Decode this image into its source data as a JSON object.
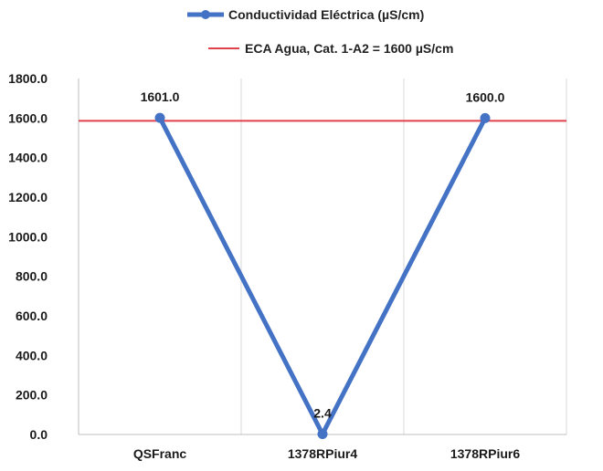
{
  "chart_data": {
    "type": "line",
    "categories": [
      "QSFranc",
      "1378RPiur4",
      "1378RPiur6"
    ],
    "series": [
      {
        "name": "Conductividad Eléctrica (µS/cm)",
        "values": [
          1601.0,
          2.4,
          1600.0
        ],
        "data_labels": [
          "1601.0",
          "2.4",
          "1600.0"
        ],
        "color": "#4472C4"
      }
    ],
    "reference_lines": [
      {
        "name": "ECA Agua, Cat. 1-A2 = 1600 µS/cm",
        "value": 1600,
        "color": "#E0424B"
      }
    ],
    "y_ticks": [
      "0.0",
      "200.0",
      "400.0",
      "600.0",
      "800.0",
      "1000.0",
      "1200.0",
      "1400.0",
      "1600.0",
      "1800.0"
    ],
    "ylim": [
      0,
      1800
    ],
    "grid": "vertical-only",
    "legend_position": "top"
  }
}
